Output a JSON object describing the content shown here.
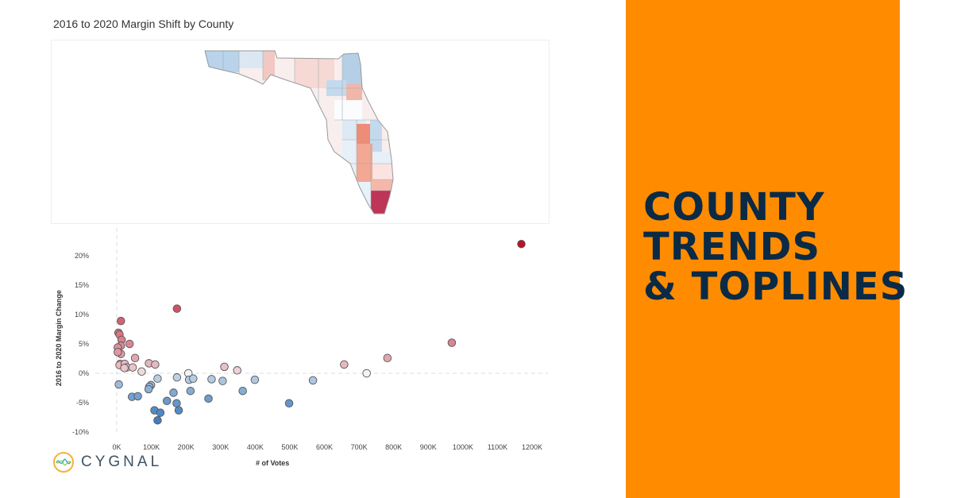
{
  "chart_data": [
    {
      "type": "map",
      "title": "2016 to 2020 Margin Shift by County",
      "region": "Florida counties",
      "color_scale": {
        "negative": "#4a8ac4",
        "neutral": "#f5f5f5",
        "positive": "#b5234a"
      }
    },
    {
      "type": "scatter",
      "xlabel": "# of Votes",
      "ylabel": "2016 to 2020 Margin Change",
      "xlim": [
        0,
        1200000
      ],
      "ylim": [
        -10,
        22
      ],
      "x_ticks": [
        "0K",
        "100K",
        "200K",
        "300K",
        "400K",
        "500K",
        "600K",
        "700K",
        "800K",
        "900K",
        "1000K",
        "1100K",
        "1200K"
      ],
      "y_ticks": [
        "-10%",
        "-5%",
        "0%",
        "5%",
        "10%",
        "15%",
        "20%"
      ],
      "grid": false,
      "reference_lines": {
        "x": 0,
        "y": 0
      },
      "color_scale": {
        "negative": "#3f7fbf",
        "neutral": "#f4f4f4",
        "positive": "#c0102a"
      },
      "points": [
        [
          1169000,
          22.0
        ],
        [
          174000,
          11.0
        ],
        [
          12000,
          8.9
        ],
        [
          5000,
          6.9
        ],
        [
          8000,
          6.6
        ],
        [
          14000,
          5.7
        ],
        [
          37000,
          5.0
        ],
        [
          12000,
          4.7
        ],
        [
          3000,
          4.4
        ],
        [
          12000,
          3.3
        ],
        [
          3000,
          3.6
        ],
        [
          53000,
          2.6
        ],
        [
          10000,
          1.6
        ],
        [
          8000,
          1.4
        ],
        [
          23000,
          1.6
        ],
        [
          29000,
          1.0
        ],
        [
          46000,
          1.0
        ],
        [
          22000,
          0.9
        ],
        [
          93000,
          1.7
        ],
        [
          111000,
          1.5
        ],
        [
          72000,
          0.3
        ],
        [
          311000,
          1.1
        ],
        [
          348000,
          0.5
        ],
        [
          657000,
          1.5
        ],
        [
          782000,
          2.6
        ],
        [
          968000,
          5.2
        ],
        [
          722000,
          0.0
        ],
        [
          567000,
          -1.2
        ],
        [
          399000,
          -1.1
        ],
        [
          274000,
          -1.0
        ],
        [
          306000,
          -1.3
        ],
        [
          207000,
          0.0
        ],
        [
          209000,
          -1.1
        ],
        [
          221000,
          -0.9
        ],
        [
          174000,
          -0.7
        ],
        [
          118000,
          -0.9
        ],
        [
          6000,
          -1.9
        ],
        [
          99000,
          -2.0
        ],
        [
          94000,
          -2.3
        ],
        [
          92000,
          -2.7
        ],
        [
          213000,
          -3.0
        ],
        [
          364000,
          -3.0
        ],
        [
          164000,
          -3.3
        ],
        [
          265000,
          -4.3
        ],
        [
          44000,
          -4.0
        ],
        [
          61000,
          -3.9
        ],
        [
          145000,
          -4.7
        ],
        [
          173000,
          -5.1
        ],
        [
          498000,
          -5.1
        ],
        [
          109000,
          -6.3
        ],
        [
          126000,
          -6.7
        ],
        [
          179000,
          -6.3
        ],
        [
          118000,
          -8.0
        ]
      ]
    }
  ],
  "logo": {
    "text": "CYGNAL"
  },
  "headline": {
    "line1": "COUNTY",
    "line2": "TRENDS",
    "line3": "& TOPLINES"
  },
  "colors": {
    "accent": "#FF8C00",
    "headline": "#0b2a45"
  }
}
